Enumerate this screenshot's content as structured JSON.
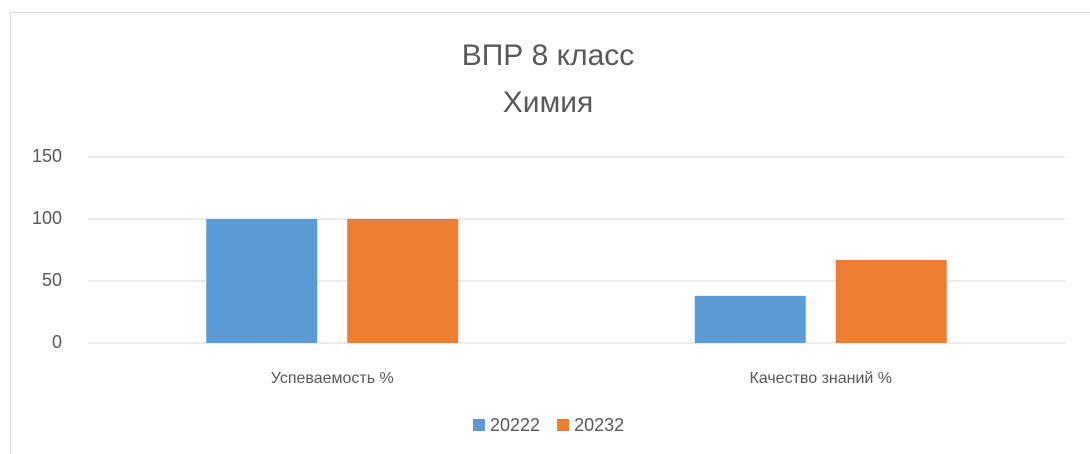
{
  "chart_data": {
    "type": "bar",
    "title": "ВПР 8 класс",
    "subtitle": "Химия",
    "categories": [
      "Успеваемость %",
      "Качество знаний %"
    ],
    "series": [
      {
        "name": "20222",
        "color": "#5b9bd5",
        "values": [
          100,
          38
        ]
      },
      {
        "name": "20232",
        "color": "#ed7d31",
        "values": [
          100,
          67
        ]
      }
    ],
    "ylim": [
      0,
      150
    ],
    "yticks": [
      0,
      50,
      100,
      150
    ],
    "grid": true,
    "legend": "bottom"
  }
}
